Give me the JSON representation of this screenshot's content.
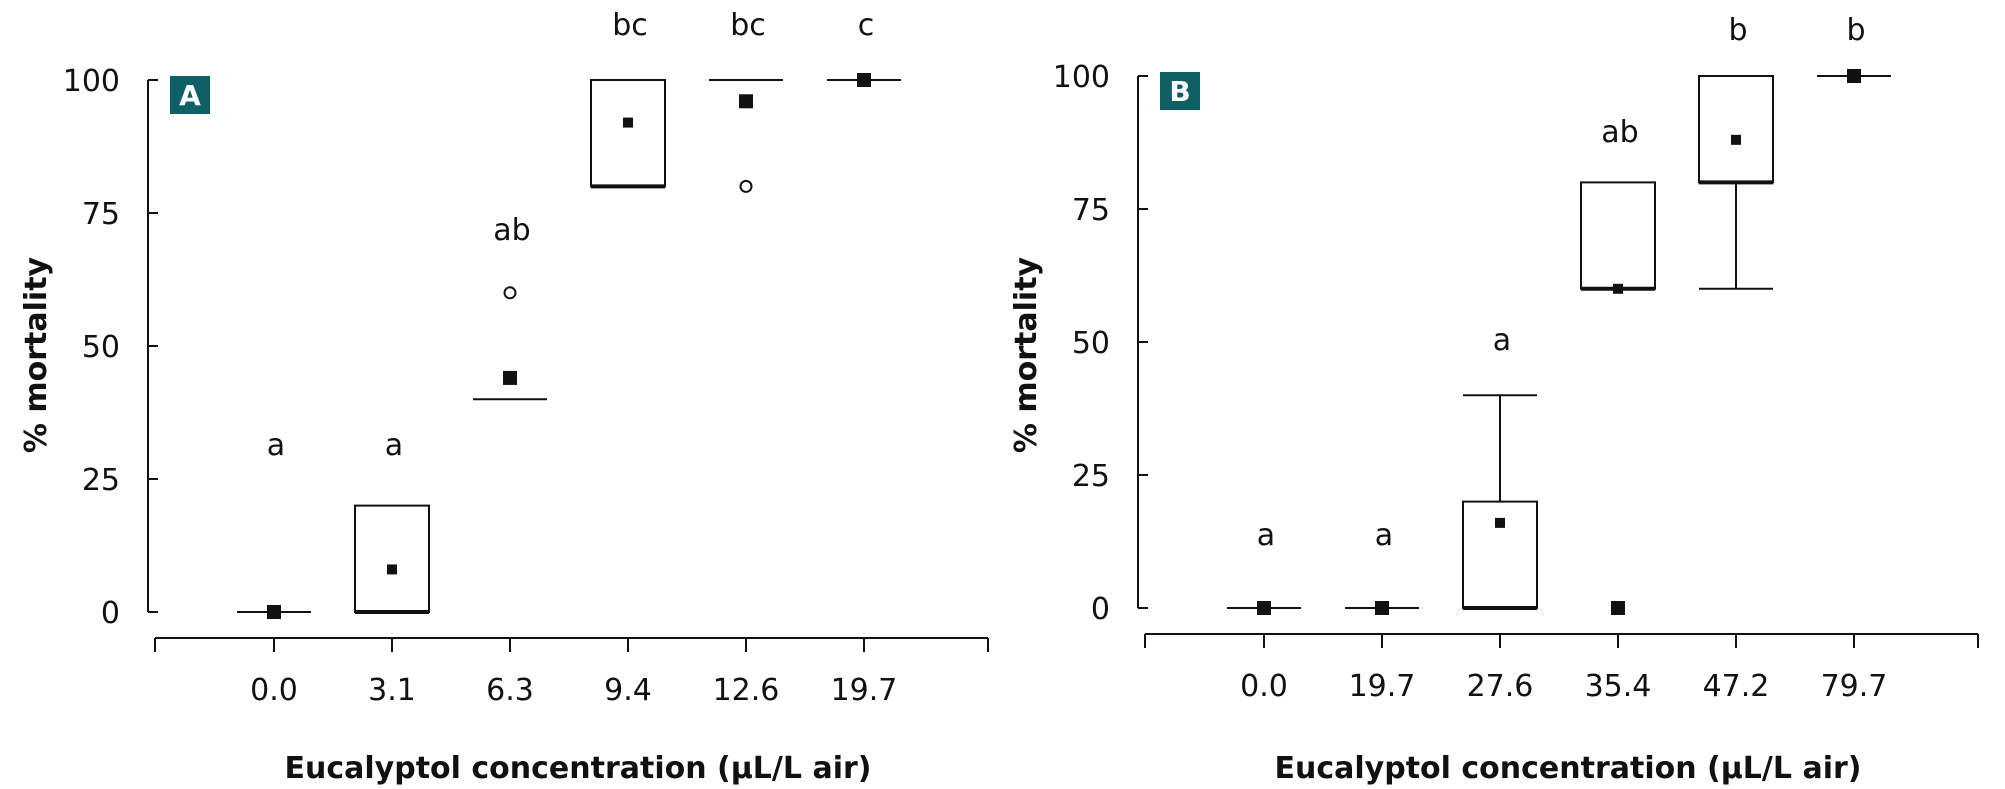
{
  "chart_data": [
    {
      "type": "box",
      "panel": "A",
      "panel_color": "#0f6066",
      "xlabel": "Eucalyptol concentration (µL/L air)",
      "ylabel": "% mortality",
      "ylim": [
        0,
        100
      ],
      "yticks": [
        0,
        25,
        50,
        75,
        100
      ],
      "grid": false,
      "categories": [
        "0.0",
        "3.1",
        "6.3",
        "9.4",
        "12.6",
        "19.7"
      ],
      "boxes": [
        {
          "category": "0.0",
          "q1": 0,
          "median": 0,
          "q3": 0,
          "whisker_low": 0,
          "whisker_high": 0,
          "mean": 0,
          "letter": "a",
          "outliers": []
        },
        {
          "category": "3.1",
          "q1": 0,
          "median": 0,
          "q3": 20,
          "whisker_low": 0,
          "whisker_high": 20,
          "mean": 8,
          "letter": "a",
          "outliers": []
        },
        {
          "category": "6.3",
          "q1": 40,
          "median": 40,
          "q3": 40,
          "whisker_low": 40,
          "whisker_high": 40,
          "mean": 44,
          "letter": "ab",
          "outliers": [
            60
          ]
        },
        {
          "category": "9.4",
          "q1": 80,
          "median": 80,
          "q3": 100,
          "whisker_low": 80,
          "whisker_high": 100,
          "mean": 92,
          "letter": "bc",
          "outliers": []
        },
        {
          "category": "12.6",
          "q1": 100,
          "median": 100,
          "q3": 100,
          "whisker_low": 100,
          "whisker_high": 100,
          "mean": 96,
          "letter": "bc",
          "outliers": [
            80
          ]
        },
        {
          "category": "19.7",
          "q1": 100,
          "median": 100,
          "q3": 100,
          "whisker_low": 100,
          "whisker_high": 100,
          "mean": 100,
          "letter": "c",
          "outliers": []
        }
      ]
    },
    {
      "type": "box",
      "panel": "B",
      "panel_color": "#0f6066",
      "xlabel": "Eucalyptol concentration (µL/L air)",
      "ylabel": "% mortality",
      "ylim": [
        0,
        100
      ],
      "yticks": [
        0,
        25,
        50,
        75,
        100
      ],
      "grid": false,
      "categories": [
        "0.0",
        "19.7",
        "27.6",
        "35.4",
        "47.2",
        "79.7"
      ],
      "boxes": [
        {
          "category": "0.0",
          "q1": 0,
          "median": 0,
          "q3": 0,
          "whisker_low": 0,
          "whisker_high": 0,
          "mean": 0,
          "letter": "a",
          "outliers": []
        },
        {
          "category": "19.7",
          "q1": 0,
          "median": 0,
          "q3": 0,
          "whisker_low": 0,
          "whisker_high": 0,
          "mean": 0,
          "letter": "a",
          "outliers": []
        },
        {
          "category": "27.6",
          "q1": 0,
          "median": 0,
          "q3": 20,
          "whisker_low": 0,
          "whisker_high": 40,
          "mean": 16,
          "letter": "a",
          "outliers": []
        },
        {
          "category": "35.4",
          "q1": 60,
          "median": 60,
          "q3": 80,
          "whisker_low": 60,
          "whisker_high": 80,
          "mean": 60,
          "letter": "ab",
          "outliers": [],
          "extreme_squares": [
            0
          ]
        },
        {
          "category": "47.2",
          "q1": 80,
          "median": 80,
          "q3": 100,
          "whisker_low": 60,
          "whisker_high": 100,
          "mean": 88,
          "letter": "b",
          "outliers": []
        },
        {
          "category": "79.7",
          "q1": 100,
          "median": 100,
          "q3": 100,
          "whisker_low": 100,
          "whisker_high": 100,
          "mean": 100,
          "letter": "b",
          "outliers": []
        }
      ]
    }
  ]
}
